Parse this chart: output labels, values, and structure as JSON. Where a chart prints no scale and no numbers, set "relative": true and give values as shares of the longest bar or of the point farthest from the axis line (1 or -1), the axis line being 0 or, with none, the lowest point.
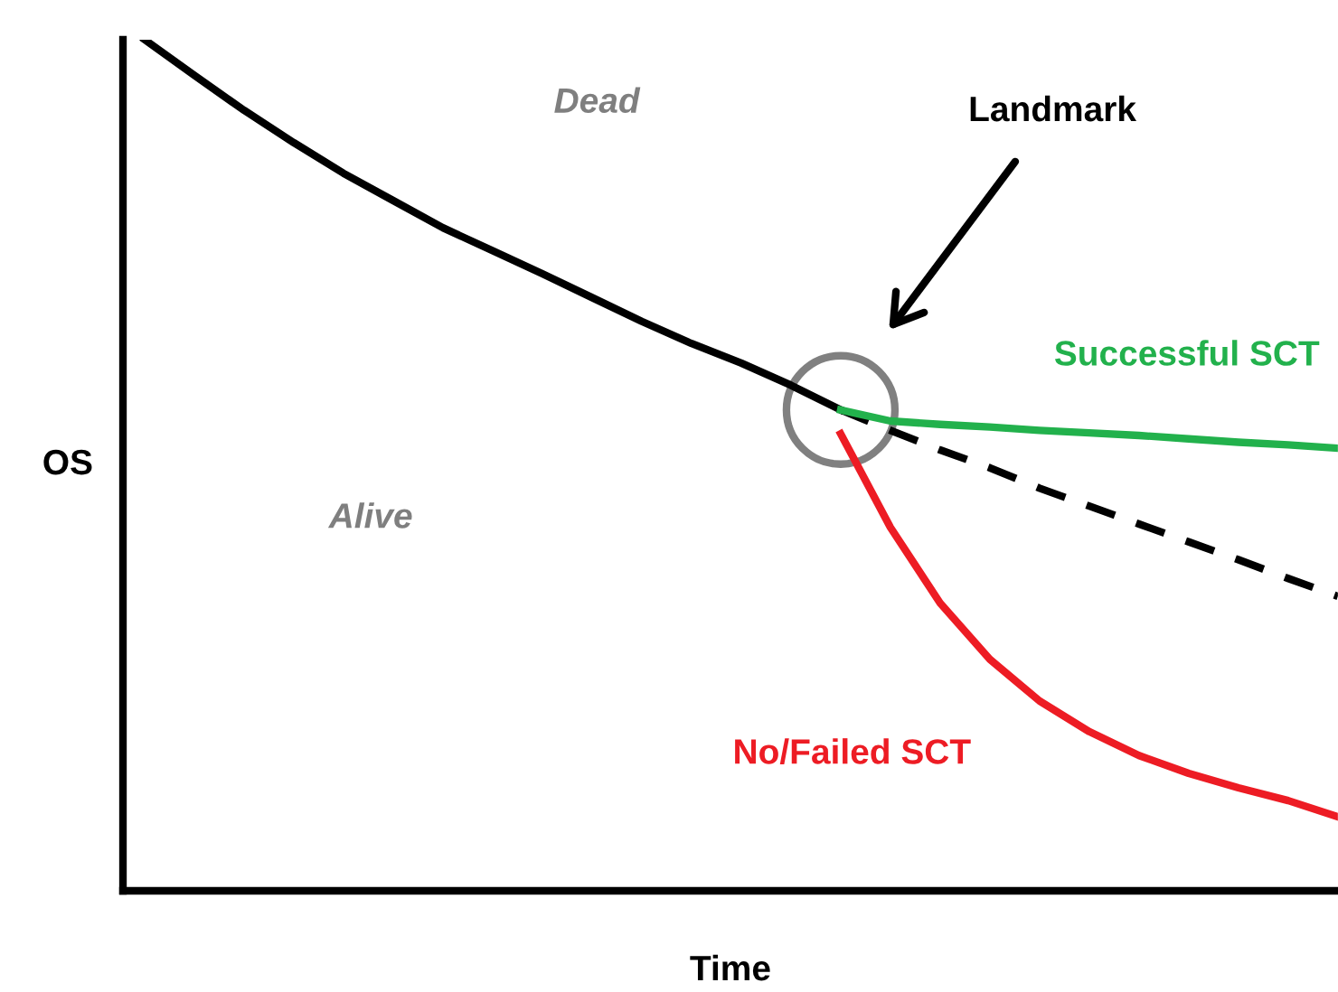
{
  "chart_data": {
    "type": "line",
    "relative": true,
    "xlabel": "Time",
    "ylabel": "OS",
    "legend": false,
    "marker": "none",
    "annotations": [
      "Dead",
      "Alive",
      "Landmark"
    ],
    "categories": [
      null,
      null,
      null,
      null,
      null,
      null,
      null,
      null,
      null,
      null,
      null,
      null,
      null,
      null,
      null,
      null,
      null,
      null,
      null,
      null,
      null,
      null,
      null,
      null,
      null
    ],
    "series": [
      {
        "color": "#000000",
        "line_style": "solid",
        "values": [
          1.0,
          0.958,
          0.917,
          0.879,
          0.843,
          0.811,
          0.779,
          0.752,
          0.725,
          0.697,
          0.669,
          0.643,
          0.62,
          0.594,
          0.565,
          null,
          null,
          null,
          null,
          null,
          null,
          null,
          null,
          null,
          null
        ]
      },
      {
        "color": "#000000",
        "line_style": "dashed",
        "values": [
          null,
          null,
          null,
          null,
          null,
          null,
          null,
          null,
          null,
          null,
          null,
          null,
          null,
          null,
          0.565,
          0.541,
          0.518,
          0.497,
          0.473,
          0.452,
          0.431,
          0.41,
          0.389,
          0.367,
          0.346
        ]
      },
      {
        "name": "Successful SCT",
        "color": "#22b14c",
        "line_style": "solid",
        "values": [
          null,
          null,
          null,
          null,
          null,
          null,
          null,
          null,
          null,
          null,
          null,
          null,
          null,
          null,
          0.565,
          0.552,
          0.548,
          0.545,
          0.541,
          0.538,
          0.535,
          0.531,
          0.527,
          0.524,
          0.52
        ]
      },
      {
        "name": "No/Failed SCT",
        "color": "#ed1c24",
        "line_style": "solid",
        "values": [
          null,
          null,
          null,
          null,
          null,
          null,
          null,
          null,
          null,
          null,
          null,
          null,
          null,
          null,
          0.537,
          0.427,
          0.338,
          0.272,
          0.223,
          0.187,
          0.159,
          0.138,
          0.121,
          0.106,
          0.087
        ]
      }
    ]
  }
}
